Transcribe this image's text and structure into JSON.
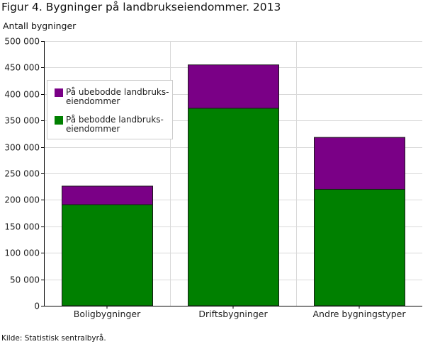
{
  "figure": {
    "title": "Figur 4. Bygninger på landbrukseiendommer. 2013",
    "y_unit_label": "Antall bygninger",
    "source": "Kilde: Statistisk sentralbyrå."
  },
  "legend": {
    "items": [
      {
        "label": "På ubebodde landbruks-eiendommer",
        "color": "#7a0086"
      },
      {
        "label": "På bebodde landbruks-eiendommer",
        "color": "#008000"
      }
    ]
  },
  "chart_data": {
    "type": "bar",
    "stacked": true,
    "title": "Figur 4. Bygninger på landbrukseiendommer. 2013",
    "xlabel": "",
    "ylabel": "Antall bygninger",
    "categories": [
      "Boligbygninger",
      "Driftsbygninger",
      "Andre bygningstyper"
    ],
    "series": [
      {
        "name": "På bebodde landbruks-eiendommer",
        "color": "#008000",
        "values": [
          191000,
          373000,
          220000
        ]
      },
      {
        "name": "På ubebodde landbruks-eiendommer",
        "color": "#7a0086",
        "values": [
          35000,
          82000,
          98000
        ]
      }
    ],
    "ylim": [
      0,
      500000
    ],
    "yticks": [
      0,
      50000,
      100000,
      150000,
      200000,
      250000,
      300000,
      350000,
      400000,
      450000,
      500000
    ],
    "ytick_labels": [
      "0",
      "50 000",
      "100 000",
      "150 000",
      "200 000",
      "250 000",
      "300 000",
      "350 000",
      "400 000",
      "450 000",
      "500 000"
    ],
    "grid": true,
    "legend_position": "upper-left"
  }
}
